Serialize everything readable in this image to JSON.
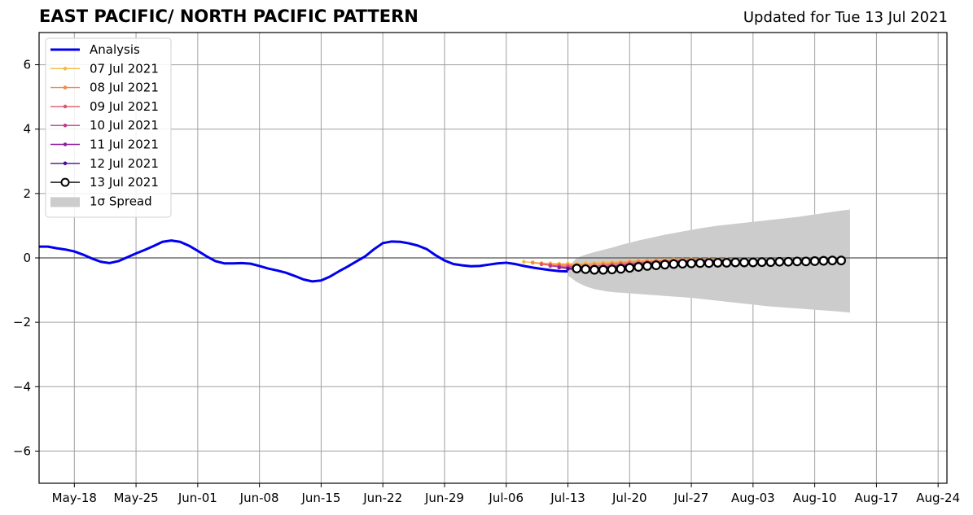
{
  "chart_data": {
    "type": "line",
    "title": "EAST PACIFIC/ NORTH PACIFIC PATTERN",
    "subtitle": "Updated for Tue 13 Jul 2021",
    "xlabel": "",
    "ylabel": "",
    "x_tick_labels": [
      "May-18",
      "May-25",
      "Jun-01",
      "Jun-08",
      "Jun-15",
      "Jun-22",
      "Jun-29",
      "Jul-06",
      "Jul-13",
      "Jul-20",
      "Jul-27",
      "Aug-03",
      "Aug-10",
      "Aug-17",
      "Aug-24"
    ],
    "y_tick_labels": [
      "−6",
      "−4",
      "−2",
      "0",
      "2",
      "4",
      "6"
    ],
    "ylim": [
      -7,
      7
    ],
    "xlim": [
      "2021-05-14",
      "2021-08-25"
    ],
    "grid": true,
    "legend_position": "top-left",
    "legend": [
      "Analysis",
      "07 Jul 2021",
      "08 Jul 2021",
      "09 Jul 2021",
      "10 Jul 2021",
      "11 Jul 2021",
      "12 Jul 2021",
      "13 Jul 2021",
      "1σ Spread"
    ],
    "analysis": {
      "name": "Analysis",
      "color": "#0000ee",
      "points": [
        [
          "2021-05-14",
          0.35
        ],
        [
          "2021-05-15",
          0.35
        ],
        [
          "2021-05-16",
          0.3
        ],
        [
          "2021-05-17",
          0.26
        ],
        [
          "2021-05-18",
          0.2
        ],
        [
          "2021-05-19",
          0.1
        ],
        [
          "2021-05-20",
          -0.02
        ],
        [
          "2021-05-21",
          -0.12
        ],
        [
          "2021-05-22",
          -0.16
        ],
        [
          "2021-05-23",
          -0.1
        ],
        [
          "2021-05-24",
          0.02
        ],
        [
          "2021-05-25",
          0.14
        ],
        [
          "2021-05-26",
          0.25
        ],
        [
          "2021-05-27",
          0.37
        ],
        [
          "2021-05-28",
          0.5
        ],
        [
          "2021-05-29",
          0.54
        ],
        [
          "2021-05-30",
          0.5
        ],
        [
          "2021-05-31",
          0.38
        ],
        [
          "2021-06-01",
          0.22
        ],
        [
          "2021-06-02",
          0.05
        ],
        [
          "2021-06-03",
          -0.1
        ],
        [
          "2021-06-04",
          -0.17
        ],
        [
          "2021-06-05",
          -0.17
        ],
        [
          "2021-06-06",
          -0.16
        ],
        [
          "2021-06-07",
          -0.18
        ],
        [
          "2021-06-08",
          -0.25
        ],
        [
          "2021-06-09",
          -0.33
        ],
        [
          "2021-06-10",
          -0.39
        ],
        [
          "2021-06-11",
          -0.46
        ],
        [
          "2021-06-12",
          -0.56
        ],
        [
          "2021-06-13",
          -0.67
        ],
        [
          "2021-06-14",
          -0.73
        ],
        [
          "2021-06-15",
          -0.7
        ],
        [
          "2021-06-16",
          -0.58
        ],
        [
          "2021-06-17",
          -0.42
        ],
        [
          "2021-06-18",
          -0.27
        ],
        [
          "2021-06-19",
          -0.11
        ],
        [
          "2021-06-20",
          0.05
        ],
        [
          "2021-06-21",
          0.27
        ],
        [
          "2021-06-22",
          0.46
        ],
        [
          "2021-06-23",
          0.51
        ],
        [
          "2021-06-24",
          0.5
        ],
        [
          "2021-06-25",
          0.45
        ],
        [
          "2021-06-26",
          0.38
        ],
        [
          "2021-06-27",
          0.27
        ],
        [
          "2021-06-28",
          0.08
        ],
        [
          "2021-06-29",
          -0.08
        ],
        [
          "2021-06-30",
          -0.19
        ],
        [
          "2021-07-01",
          -0.23
        ],
        [
          "2021-07-02",
          -0.26
        ],
        [
          "2021-07-03",
          -0.25
        ],
        [
          "2021-07-04",
          -0.21
        ],
        [
          "2021-07-05",
          -0.17
        ],
        [
          "2021-07-06",
          -0.15
        ],
        [
          "2021-07-07",
          -0.19
        ],
        [
          "2021-07-08",
          -0.25
        ],
        [
          "2021-07-09",
          -0.3
        ],
        [
          "2021-07-10",
          -0.34
        ],
        [
          "2021-07-11",
          -0.38
        ],
        [
          "2021-07-12",
          -0.41
        ],
        [
          "2021-07-13",
          -0.42
        ]
      ]
    },
    "forecasts": [
      {
        "name": "07 Jul 2021",
        "color": "#f5b942",
        "start": "2021-07-08",
        "values": [
          -0.12,
          -0.14,
          -0.16,
          -0.17,
          -0.18,
          -0.18,
          -0.18,
          -0.17,
          -0.16,
          -0.15,
          -0.14,
          -0.12,
          -0.1,
          -0.09,
          -0.08,
          -0.07,
          -0.06,
          -0.05,
          -0.05,
          -0.04,
          -0.04,
          -0.04,
          -0.04,
          -0.04,
          -0.05,
          -0.05,
          -0.06,
          -0.06,
          -0.07,
          -0.07,
          -0.08,
          -0.08,
          -0.08,
          -0.09,
          -0.09
        ]
      },
      {
        "name": "08 Jul 2021",
        "color": "#f08a4b",
        "start": "2021-07-09",
        "values": [
          -0.15,
          -0.18,
          -0.2,
          -0.21,
          -0.22,
          -0.22,
          -0.21,
          -0.2,
          -0.19,
          -0.17,
          -0.15,
          -0.13,
          -0.11,
          -0.1,
          -0.09,
          -0.08,
          -0.07,
          -0.06,
          -0.06,
          -0.05,
          -0.05,
          -0.05,
          -0.06,
          -0.06,
          -0.06,
          -0.07,
          -0.07,
          -0.08,
          -0.08,
          -0.08,
          -0.09,
          -0.09,
          -0.09,
          -0.09
        ]
      },
      {
        "name": "09 Jul 2021",
        "color": "#e0566e",
        "start": "2021-07-10",
        "values": [
          -0.2,
          -0.23,
          -0.25,
          -0.26,
          -0.26,
          -0.26,
          -0.25,
          -0.23,
          -0.21,
          -0.19,
          -0.17,
          -0.15,
          -0.13,
          -0.11,
          -0.1,
          -0.09,
          -0.08,
          -0.07,
          -0.07,
          -0.07,
          -0.06,
          -0.06,
          -0.07,
          -0.07,
          -0.07,
          -0.08,
          -0.08,
          -0.08,
          -0.09,
          -0.09,
          -0.09,
          -0.09,
          -0.1
        ]
      },
      {
        "name": "10 Jul 2021",
        "color": "#c03a8e",
        "start": "2021-07-11",
        "values": [
          -0.25,
          -0.28,
          -0.3,
          -0.3,
          -0.3,
          -0.29,
          -0.27,
          -0.25,
          -0.23,
          -0.2,
          -0.18,
          -0.16,
          -0.14,
          -0.12,
          -0.11,
          -0.1,
          -0.09,
          -0.08,
          -0.08,
          -0.08,
          -0.08,
          -0.08,
          -0.08,
          -0.08,
          -0.08,
          -0.09,
          -0.09,
          -0.09,
          -0.09,
          -0.09,
          -0.1,
          -0.1
        ]
      },
      {
        "name": "11 Jul 2021",
        "color": "#8e1f9e",
        "start": "2021-07-12",
        "values": [
          -0.3,
          -0.33,
          -0.34,
          -0.33,
          -0.31,
          -0.29,
          -0.27,
          -0.24,
          -0.22,
          -0.2,
          -0.18,
          -0.16,
          -0.14,
          -0.13,
          -0.12,
          -0.11,
          -0.1,
          -0.1,
          -0.1,
          -0.1,
          -0.1,
          -0.1,
          -0.1,
          -0.1,
          -0.1,
          -0.1,
          -0.1,
          -0.1,
          -0.1,
          -0.1,
          -0.1
        ]
      },
      {
        "name": "12 Jul 2021",
        "color": "#4b0f8c",
        "start": "2021-07-13",
        "values": [
          -0.34,
          -0.36,
          -0.36,
          -0.35,
          -0.33,
          -0.31,
          -0.28,
          -0.26,
          -0.23,
          -0.21,
          -0.19,
          -0.17,
          -0.16,
          -0.15,
          -0.14,
          -0.13,
          -0.12,
          -0.12,
          -0.12,
          -0.12,
          -0.12,
          -0.11,
          -0.11,
          -0.11,
          -0.1,
          -0.1,
          -0.1,
          -0.1,
          -0.1,
          -0.1
        ]
      },
      {
        "name": "13 Jul 2021",
        "color": "#000000",
        "start": "2021-07-14",
        "values": [
          -0.33,
          -0.35,
          -0.37,
          -0.37,
          -0.36,
          -0.34,
          -0.31,
          -0.28,
          -0.25,
          -0.23,
          -0.21,
          -0.19,
          -0.18,
          -0.17,
          -0.16,
          -0.16,
          -0.15,
          -0.15,
          -0.14,
          -0.14,
          -0.14,
          -0.13,
          -0.13,
          -0.12,
          -0.12,
          -0.11,
          -0.11,
          -0.1,
          -0.09,
          -0.08,
          -0.08
        ]
      }
    ],
    "spread": {
      "name": "1σ Spread",
      "color": "#cccccc",
      "start": "2021-07-13",
      "upper": [
        -0.3,
        0.0,
        0.1,
        0.18,
        0.25,
        0.32,
        0.4,
        0.47,
        0.54,
        0.6,
        0.66,
        0.72,
        0.77,
        0.82,
        0.87,
        0.92,
        0.96,
        1.0,
        1.03,
        1.06,
        1.09,
        1.12,
        1.15,
        1.18,
        1.21,
        1.24,
        1.27,
        1.31,
        1.35,
        1.39,
        1.43,
        1.47,
        1.5
      ],
      "lower": [
        -0.55,
        -0.75,
        -0.88,
        -0.97,
        -1.02,
        -1.06,
        -1.08,
        -1.1,
        -1.12,
        -1.14,
        -1.16,
        -1.18,
        -1.2,
        -1.22,
        -1.24,
        -1.27,
        -1.3,
        -1.33,
        -1.36,
        -1.39,
        -1.42,
        -1.45,
        -1.48,
        -1.51,
        -1.53,
        -1.55,
        -1.57,
        -1.59,
        -1.61,
        -1.63,
        -1.65,
        -1.67,
        -1.7
      ]
    }
  }
}
